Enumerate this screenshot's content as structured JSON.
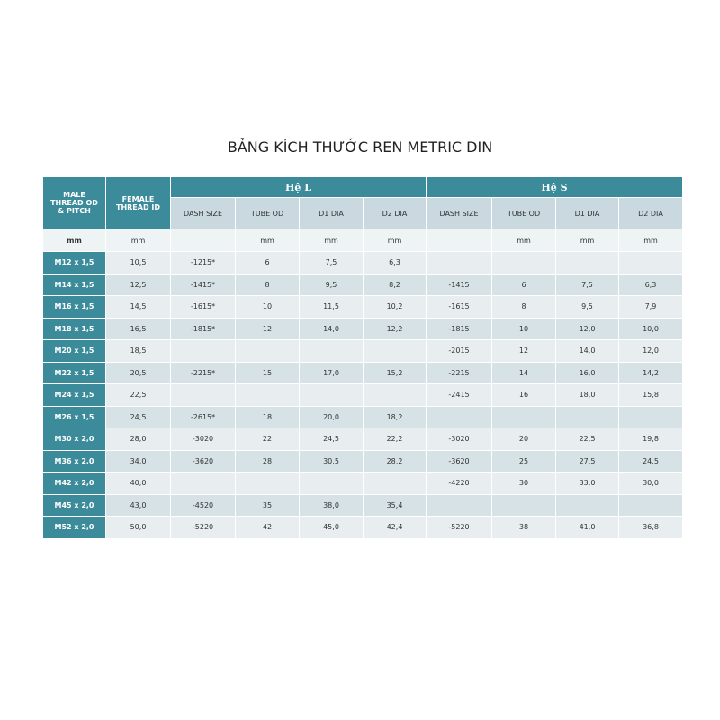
{
  "title": "BẢNG KÍCH THƯỚC REN METRIC DIN",
  "header": {
    "male": "MALE THREAD OD & PITCH",
    "female": "FEMALE THREAD ID",
    "groups": [
      "Hệ L",
      "Hệ S"
    ],
    "columns": [
      "DASH SIZE",
      "TUBE OD",
      "D1 DIA",
      "D2 DIA",
      "DASH SIZE",
      "TUBE OD",
      "D1 DIA",
      "D2 DIA"
    ]
  },
  "units": [
    "mm",
    "mm",
    null,
    "mm",
    "mm",
    "mm",
    null,
    "mm",
    "mm",
    "mm"
  ],
  "rows": [
    [
      "M12 x 1,5",
      "10,5",
      "-1215*",
      "6",
      "7,5",
      "6,3",
      null,
      null,
      null,
      null
    ],
    [
      "M14 x 1,5",
      "12,5",
      "-1415*",
      "8",
      "9,5",
      "8,2",
      "-1415",
      "6",
      "7,5",
      "6,3"
    ],
    [
      "M16 x 1,5",
      "14,5",
      "-1615*",
      "10",
      "11,5",
      "10,2",
      "-1615",
      "8",
      "9,5",
      "7,9"
    ],
    [
      "M18 x 1,5",
      "16,5",
      "-1815*",
      "12",
      "14,0",
      "12,2",
      "-1815",
      "10",
      "12,0",
      "10,0"
    ],
    [
      "M20 x 1,5",
      "18,5",
      null,
      null,
      null,
      null,
      "-2015",
      "12",
      "14,0",
      "12,0"
    ],
    [
      "M22 x 1,5",
      "20,5",
      "-2215*",
      "15",
      "17,0",
      "15,2",
      "-2215",
      "14",
      "16,0",
      "14,2"
    ],
    [
      "M24 x 1,5",
      "22,5",
      null,
      null,
      null,
      null,
      "-2415",
      "16",
      "18,0",
      "15,8"
    ],
    [
      "M26 x 1,5",
      "24,5",
      "-2615*",
      "18",
      "20,0",
      "18,2",
      null,
      null,
      null,
      null
    ],
    [
      "M30 x 2,0",
      "28,0",
      "-3020",
      "22",
      "24,5",
      "22,2",
      "-3020",
      "20",
      "22,5",
      "19,8"
    ],
    [
      "M36 x 2,0",
      "34,0",
      "-3620",
      "28",
      "30,5",
      "28,2",
      "-3620",
      "25",
      "27,5",
      "24,5"
    ],
    [
      "M42 x 2,0",
      "40,0",
      null,
      null,
      null,
      null,
      "-4220",
      "30",
      "33,0",
      "30,0"
    ],
    [
      "M45 x 2,0",
      "43,0",
      "-4520",
      "35",
      "38,0",
      "35,4",
      null,
      null,
      null,
      null
    ],
    [
      "M52 x 2,0",
      "50,0",
      "-5220",
      "42",
      "45,0",
      "42,4",
      "-5220",
      "38",
      "41,0",
      "36,8"
    ]
  ]
}
